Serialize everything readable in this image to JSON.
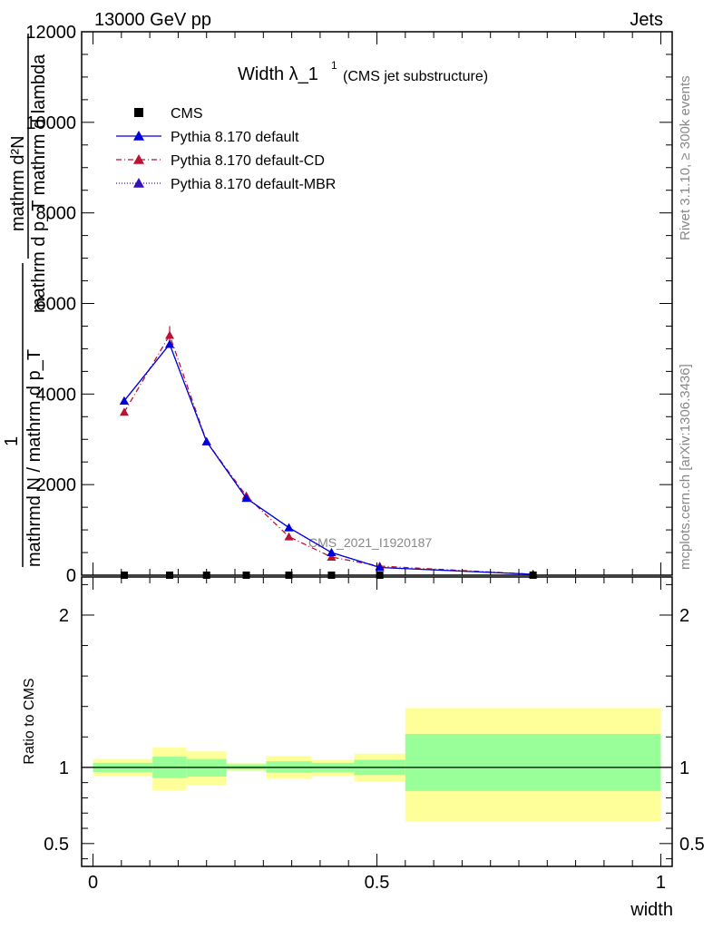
{
  "header": {
    "left": "13000 GeV pp",
    "right": "Jets"
  },
  "title": {
    "main": "Width λ_1",
    "sup": "1",
    "sub": "(CMS jet substructure)"
  },
  "side_labels": {
    "rivet": "Rivet 3.1.10, ≥ 300k events",
    "mcplots": "mcplots.cern.ch [arXiv:1306.3436]"
  },
  "watermark": "CMS_2021_I1920187",
  "main_ylabel": {
    "top_num": "mathrm d²N",
    "top_den": "mathrm d p_T mathrm d lambda",
    "one": "1",
    "bottom": "mathrmd N / mathrm d p_T"
  },
  "legend": [
    {
      "label": "CMS",
      "color": "#000000",
      "marker": "square",
      "line": "none"
    },
    {
      "label": "Pythia 8.170 default",
      "color": "#0000dd",
      "marker": "triangle",
      "line": "solid"
    },
    {
      "label": "Pythia 8.170 default-CD",
      "color": "#bb1133",
      "marker": "triangle",
      "line": "dashdot"
    },
    {
      "label": "Pythia 8.170 default-MBR",
      "color": "#3311bb",
      "marker": "triangle",
      "line": "dotted"
    }
  ],
  "chart_data": {
    "type": "line",
    "xlabel": "width",
    "ylabel_ratio": "Ratio to CMS",
    "x_ticks": [
      "0",
      "0.5",
      "1"
    ],
    "y_ticks_main": [
      "0",
      "2000",
      "4000",
      "6000",
      "8000",
      "10000",
      "12000"
    ],
    "y_ticks_ratio": [
      "0.5",
      "1",
      "2"
    ],
    "xlim": [
      -0.02,
      1.02
    ],
    "ylim_main": [
      0,
      12000
    ],
    "ylim_ratio": [
      0.35,
      2.25
    ],
    "x": [
      0.055,
      0.135,
      0.2,
      0.27,
      0.345,
      0.42,
      0.505,
      0.775
    ],
    "series": [
      {
        "name": "CMS",
        "values": [
          0,
          0,
          0,
          0,
          0,
          0,
          0,
          0
        ]
      },
      {
        "name": "Pythia 8.170 default",
        "values": [
          3850,
          5100,
          2950,
          1700,
          1050,
          500,
          170,
          20
        ]
      },
      {
        "name": "Pythia 8.170 default-CD",
        "values": [
          3600,
          5300,
          2950,
          1750,
          850,
          400,
          200,
          20
        ]
      },
      {
        "name": "Pythia 8.170 default-MBR",
        "values": [
          3850,
          5100,
          2950,
          1700,
          1050,
          500,
          170,
          20
        ]
      }
    ],
    "ratio_bands": {
      "bin_edges": [
        0,
        0.105,
        0.165,
        0.235,
        0.305,
        0.385,
        0.46,
        0.55,
        1.0
      ],
      "yellow": [
        [
          0.945,
          1.055
        ],
        [
          0.85,
          1.13
        ],
        [
          0.88,
          1.105
        ],
        [
          0.975,
          1.03
        ],
        [
          0.925,
          1.075
        ],
        [
          0.945,
          1.05
        ],
        [
          0.905,
          1.09
        ],
        [
          0.645,
          1.39
        ]
      ],
      "green": [
        [
          0.97,
          1.03
        ],
        [
          0.93,
          1.07
        ],
        [
          0.94,
          1.055
        ],
        [
          0.985,
          1.02
        ],
        [
          0.965,
          1.04
        ],
        [
          0.97,
          1.03
        ],
        [
          0.95,
          1.05
        ],
        [
          0.845,
          1.22
        ]
      ]
    }
  }
}
